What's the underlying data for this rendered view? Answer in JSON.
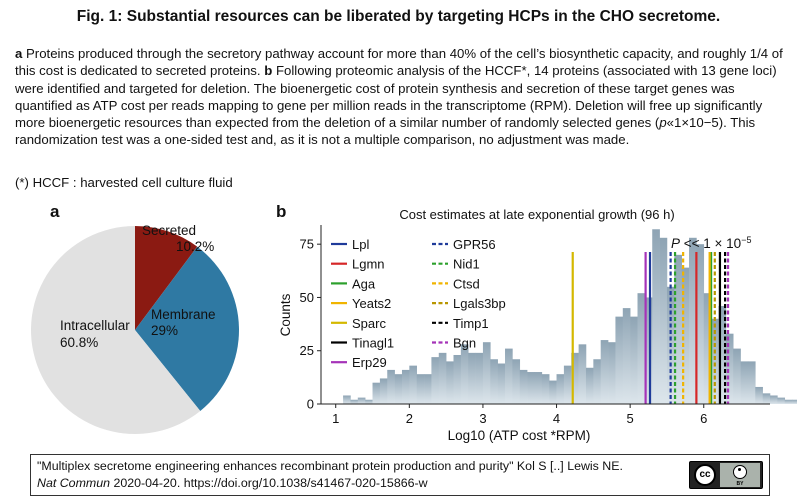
{
  "figure": {
    "title": "Fig. 1: Substantial resources can be liberated by targeting HCPs in the CHO secretome.",
    "caption": {
      "label_a": "a",
      "text_a": " Proteins produced through the secretory pathway account for more than 40% of the cell’s biosynthetic capacity, and roughly 1/4 of this cost is dedicated to secreted proteins. ",
      "label_b": "b",
      "text_b1": " Following proteomic analysis of the HCCF*, 14 proteins (associated with 13 gene loci) were identified and targeted for deletion. The bioenergetic cost of protein synthesis and secretion of these target genes was quantified as ATP cost per reads mapping to gene per million reads in the transcriptome (RPM). Deletion will free up significantly more bioenergetic resources than expected from the deletion of a similar number of randomly selected genes (",
      "p_italic": "p",
      "text_b2": "«1×10−5). This randomization test was a one-sided test and, as it is not a multiple comparison, no adjustment was made."
    },
    "footnote": "(*) HCCF : harvested cell culture fluid"
  },
  "panel_labels": {
    "a": "a",
    "b": "b"
  },
  "chart_data": [
    {
      "type": "pie",
      "panel": "a",
      "slices": [
        {
          "label": "Secreted",
          "value": 10.2,
          "value_label": "10.2%",
          "color": "#8b1a12"
        },
        {
          "label": "Membrane",
          "value": 29,
          "value_label": "29%",
          "color": "#2f79a3"
        },
        {
          "label": "Intracellular",
          "value": 60.8,
          "value_label": "60.8%",
          "color": "#e1e1e1"
        }
      ]
    },
    {
      "type": "bar",
      "panel": "b",
      "title": "Cost estimates at late exponential growth (96 h)",
      "xlabel": "Log10 (ATP cost *RPM)",
      "ylabel": "Counts",
      "xlim": [
        0.8,
        6.9
      ],
      "ylim": [
        0,
        84
      ],
      "xticks": [
        1,
        2,
        3,
        4,
        5,
        6
      ],
      "yticks": [
        0,
        25,
        50,
        75
      ],
      "annotation": {
        "prefix": "P",
        "relation": " << 1 × 10",
        "exponent": "−5"
      },
      "histogram": {
        "bin_width": 0.1,
        "bins_start": 1.1,
        "counts": [
          4,
          2,
          3,
          2,
          10,
          12,
          16,
          14,
          16,
          18,
          14,
          14,
          22,
          24,
          20,
          23,
          28,
          24,
          24,
          29,
          21,
          19,
          26,
          21,
          16,
          15,
          15,
          14,
          11,
          14,
          18,
          24,
          28,
          17,
          21,
          30,
          29,
          41,
          45,
          41,
          52,
          50,
          82,
          78,
          55,
          70,
          64,
          78,
          75,
          52,
          40,
          46,
          33,
          26,
          20,
          20,
          8,
          5,
          4,
          3,
          2,
          2,
          2,
          2,
          1,
          0,
          0
        ]
      },
      "series": [
        {
          "name": "Lpl",
          "x": 5.27,
          "color": "#1f3b9a",
          "dash": "solid"
        },
        {
          "name": "Lgmn",
          "x": 5.9,
          "color": "#d62728",
          "dash": "solid"
        },
        {
          "name": "Aga",
          "x": 6.1,
          "color": "#2ca02c",
          "dash": "solid"
        },
        {
          "name": "Yeats2",
          "x": 6.08,
          "color": "#f0b400",
          "dash": "solid"
        },
        {
          "name": "Sparc",
          "x": 4.22,
          "color": "#d4b800",
          "dash": "solid"
        },
        {
          "name": "Tinagl1",
          "x": 6.22,
          "color": "#000000",
          "dash": "solid"
        },
        {
          "name": "Erp29",
          "x": 5.21,
          "color": "#a533b8",
          "dash": "solid"
        },
        {
          "name": "GPR56",
          "x": 5.55,
          "color": "#1f3b9a",
          "dash": "dashed"
        },
        {
          "name": "Nid1",
          "x": 5.61,
          "color": "#2ca02c",
          "dash": "dashed"
        },
        {
          "name": "Ctsd",
          "x": 5.72,
          "color": "#f0b400",
          "dash": "dashed"
        },
        {
          "name": "Lgals3bp",
          "x": 6.15,
          "color": "#b89600",
          "dash": "dashed"
        },
        {
          "name": "Timp1",
          "x": 6.29,
          "color": "#000000",
          "dash": "dashed"
        },
        {
          "name": "Bgn",
          "x": 6.33,
          "color": "#a533b8",
          "dash": "dashed"
        }
      ]
    }
  ],
  "citation": {
    "line1": "\"Multiplex secretome engineering enhances recombinant protein production and purity\" Kol S [..] Lewis NE.",
    "journal": "Nat Commun",
    "line2": " 2020-04-20. https://doi.org/10.1038/s41467-020-15866-w",
    "license_icon": "cc-by-icon",
    "license_cc": "cc",
    "license_by": "BY"
  }
}
